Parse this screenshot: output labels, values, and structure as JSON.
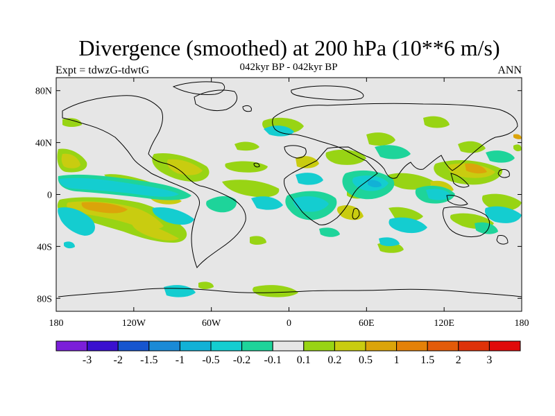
{
  "title": "Divergence (smoothed) at 200 hPa (10**6 m/s)",
  "subtitle": "042kyr BP - 042kyr BP",
  "left_label": "Expt = tdwzG-tdwtG",
  "right_label": "ANN",
  "lat_ticks": [
    "80N",
    "40N",
    "0",
    "40S",
    "80S"
  ],
  "lon_ticks": [
    "180",
    "120W",
    "60W",
    "0",
    "60E",
    "120E",
    "180"
  ],
  "colorbar": {
    "labels": [
      "-3",
      "-2",
      "-1.5",
      "-1",
      "-0.5",
      "-0.2",
      "-0.1",
      "0.1",
      "0.2",
      "0.5",
      "1",
      "1.5",
      "2",
      "3"
    ],
    "colors": [
      "#7b1fd9",
      "#3a10cf",
      "#1655cf",
      "#1b8ad6",
      "#12b1d6",
      "#14cdd0",
      "#1ed49a",
      "#e6e6e6",
      "#98d414",
      "#c9cc10",
      "#dba40a",
      "#e48108",
      "#e35b09",
      "#de3209",
      "#e00a0a"
    ]
  },
  "colors": {
    "background": "#e6e6e6",
    "coast": "#000000"
  }
}
